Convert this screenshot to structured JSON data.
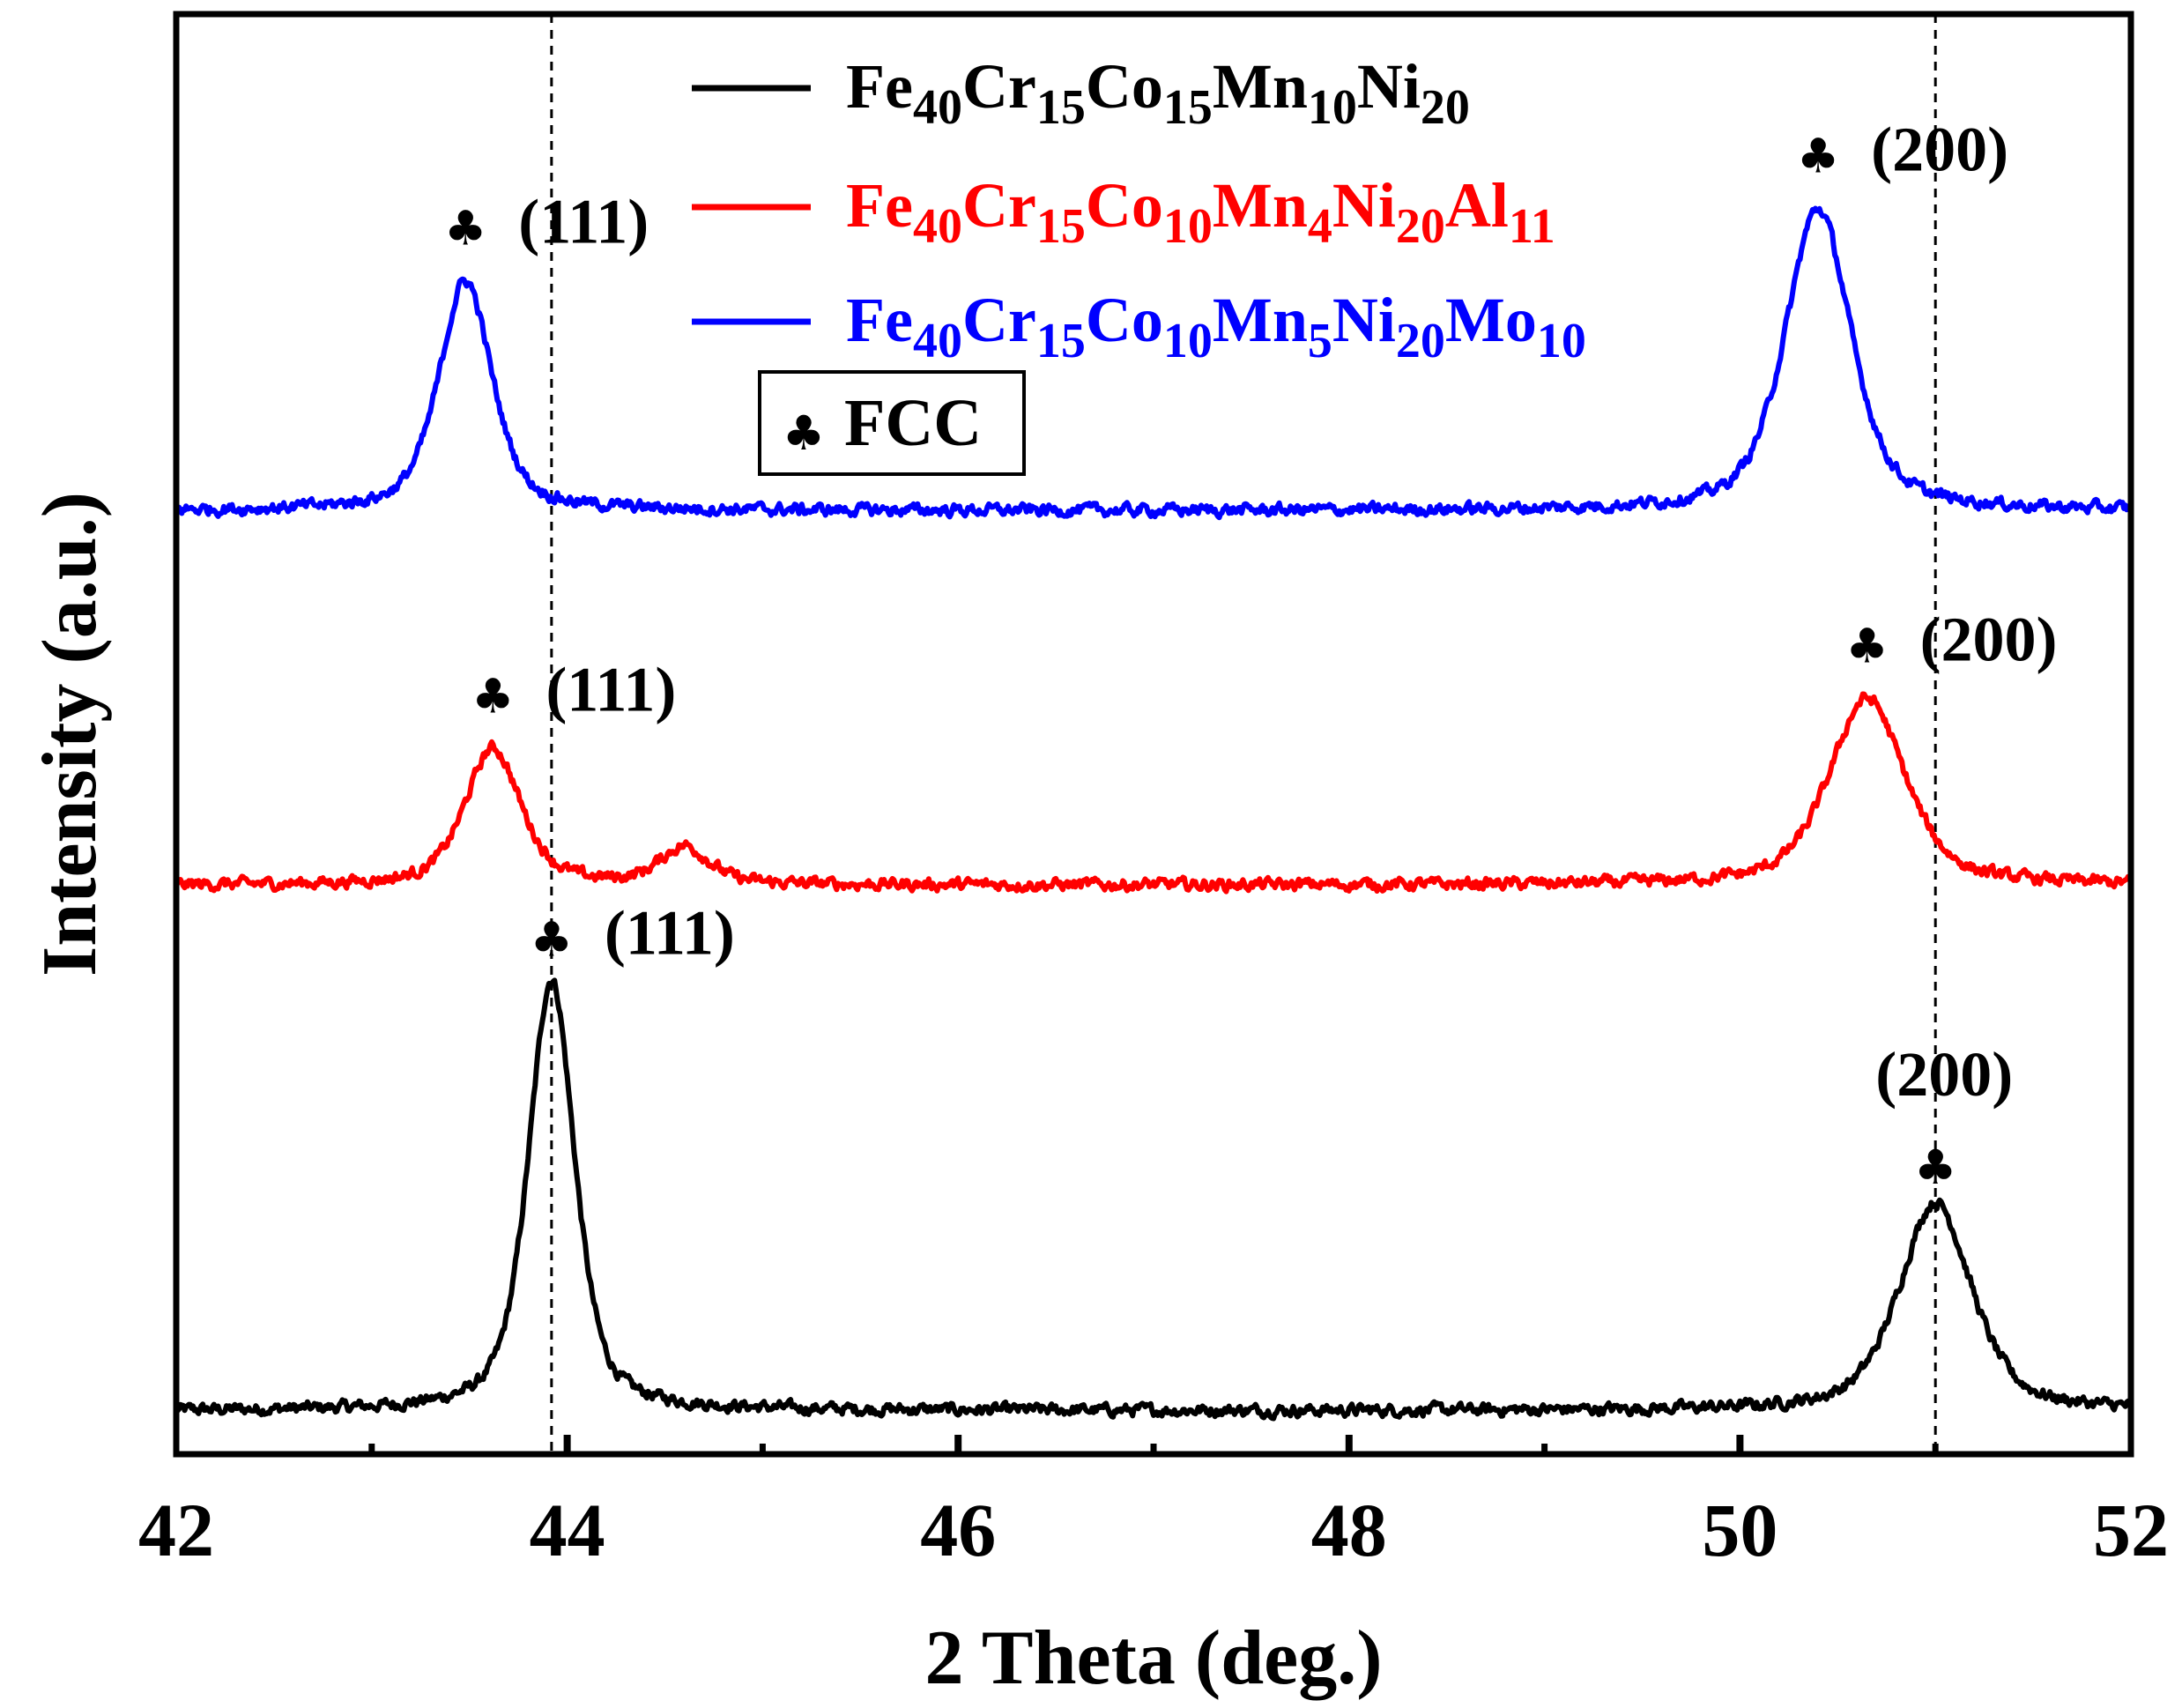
{
  "chart_data": {
    "type": "line",
    "title": "",
    "xlabel": "2 Theta (deg.)",
    "ylabel": "Intensity (a.u.)",
    "xlim": [
      42,
      52
    ],
    "ylim": [
      0,
      100
    ],
    "x_ticks": [
      "42",
      "44",
      "46",
      "48",
      "50",
      "52"
    ],
    "x_tick_values": [
      42,
      44,
      46,
      48,
      50,
      52
    ],
    "minor_x_ticks": [
      43,
      45,
      47,
      49,
      51
    ],
    "reference_lines_x": [
      43.92,
      51.0
    ],
    "series": [
      {
        "name": "Fe40Cr15Co15Mn10Ni20",
        "name_parts": [
          {
            "t": "Fe",
            "sub": "40"
          },
          {
            "t": "Cr",
            "sub": "15"
          },
          {
            "t": "Co",
            "sub": "15"
          },
          {
            "t": "Mn",
            "sub": "10"
          },
          {
            "t": "Ni",
            "sub": "20"
          }
        ],
        "color": "#000000",
        "baseline": 3.0,
        "noise": 0.45,
        "peaks": [
          {
            "x": 43.92,
            "height": 30.0,
            "width": 0.14
          },
          {
            "x": 51.0,
            "height": 14.5,
            "width": 0.22
          }
        ]
      },
      {
        "name": "Fe40Cr15Co10Mn4Ni20Al11",
        "name_parts": [
          {
            "t": "Fe",
            "sub": "40"
          },
          {
            "t": "Cr",
            "sub": "15"
          },
          {
            "t": "Co",
            "sub": "10"
          },
          {
            "t": "Mn",
            "sub": "4"
          },
          {
            "t": "Ni",
            "sub": "20"
          },
          {
            "t": "Al",
            "sub": "11"
          }
        ],
        "color": "#ff0000",
        "baseline": 39.5,
        "noise": 0.45,
        "peaks": [
          {
            "x": 43.62,
            "height": 9.5,
            "width": 0.17
          },
          {
            "x": 44.6,
            "height": 2.6,
            "width": 0.15
          },
          {
            "x": 50.65,
            "height": 13.0,
            "width": 0.23
          }
        ]
      },
      {
        "name": "Fe40Cr15Co10Mn5Ni20Mo10",
        "name_parts": [
          {
            "t": "Fe",
            "sub": "40"
          },
          {
            "t": "Cr",
            "sub": "15"
          },
          {
            "t": "Co",
            "sub": "10"
          },
          {
            "t": "Mn",
            "sub": "5"
          },
          {
            "t": "Ni",
            "sub": "20"
          },
          {
            "t": "Mo",
            "sub": "10"
          }
        ],
        "color": "#0000ff",
        "baseline": 65.5,
        "noise": 0.45,
        "peaks": [
          {
            "x": 43.48,
            "height": 16.0,
            "width": 0.16
          },
          {
            "x": 50.4,
            "height": 21.0,
            "width": 0.2
          }
        ]
      }
    ],
    "annotations": [
      {
        "symbol": "♣",
        "label": "(111)",
        "x": 43.92,
        "y": 34.6,
        "series": 0
      },
      {
        "symbol": "♣",
        "label": "(200)",
        "x": 51.0,
        "y": 18.8,
        "series": 0,
        "label_above": true
      },
      {
        "symbol": "♣",
        "label": "(111)",
        "x": 43.62,
        "y": 51.5,
        "series": 1
      },
      {
        "symbol": "♣",
        "label": "(200)",
        "x": 50.65,
        "y": 55.0,
        "series": 1
      },
      {
        "symbol": "♣",
        "label": "(111)",
        "x": 43.48,
        "y": 84.0,
        "series": 2
      },
      {
        "symbol": "♣",
        "label": "(200)",
        "x": 50.4,
        "y": 89.0,
        "series": 2
      }
    ],
    "legend": {
      "placement": "top-center"
    },
    "phase_box": {
      "symbol": "♣",
      "label": "FCC"
    },
    "grid": false
  }
}
